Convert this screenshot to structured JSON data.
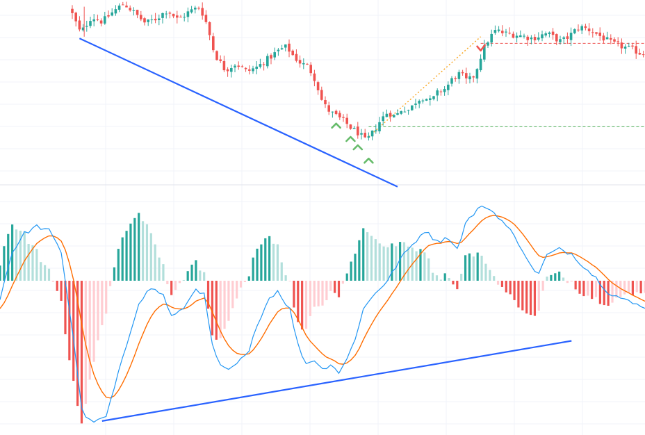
{
  "chart_data": [
    {
      "panel": "price",
      "type": "candlestick",
      "title": "",
      "xlabel": "",
      "ylabel": "",
      "grid": true,
      "ylim": [
        0,
        100
      ],
      "anchors": [
        [
          0,
          95
        ],
        [
          3,
          80
        ],
        [
          6,
          90
        ],
        [
          9,
          87
        ],
        [
          12,
          93
        ],
        [
          15,
          98
        ],
        [
          18,
          92
        ],
        [
          21,
          86
        ],
        [
          24,
          89
        ],
        [
          27,
          94
        ],
        [
          30,
          88
        ],
        [
          33,
          93
        ],
        [
          36,
          96
        ],
        [
          38,
          85
        ],
        [
          40,
          68
        ],
        [
          43,
          58
        ],
        [
          46,
          62
        ],
        [
          49,
          57
        ],
        [
          52,
          60
        ],
        [
          55,
          65
        ],
        [
          58,
          70
        ],
        [
          60,
          72
        ],
        [
          62,
          66
        ],
        [
          64,
          62
        ],
        [
          66,
          60
        ],
        [
          68,
          52
        ],
        [
          70,
          38
        ],
        [
          72,
          33
        ],
        [
          74,
          30
        ],
        [
          76,
          27
        ],
        [
          78,
          23
        ],
        [
          80,
          20
        ],
        [
          82,
          15
        ],
        [
          84,
          21
        ],
        [
          86,
          28
        ],
        [
          88,
          33
        ],
        [
          90,
          30
        ],
        [
          92,
          35
        ],
        [
          94,
          34
        ],
        [
          96,
          40
        ],
        [
          98,
          42
        ],
        [
          100,
          39
        ],
        [
          102,
          45
        ],
        [
          104,
          47
        ],
        [
          106,
          53
        ],
        [
          108,
          56
        ],
        [
          110,
          51
        ],
        [
          112,
          55
        ],
        [
          114,
          68
        ],
        [
          116,
          77
        ],
        [
          118,
          82
        ],
        [
          120,
          80
        ],
        [
          124,
          79
        ],
        [
          128,
          77
        ],
        [
          132,
          80
        ],
        [
          136,
          75
        ],
        [
          138,
          78
        ],
        [
          141,
          84
        ],
        [
          144,
          82
        ],
        [
          147,
          78
        ],
        [
          150,
          74
        ],
        [
          153,
          72
        ],
        [
          156,
          70
        ],
        [
          158,
          68
        ]
      ],
      "up_color": "#26a69a",
      "down_color": "#ef5350",
      "annotations": {
        "trendline_color": "#2962ff",
        "trendline_from_bar": 2,
        "trendline_from_value": 77,
        "trendline_to_bar": 90,
        "trendline_to_value": -12,
        "support_level": 24,
        "resistance_level": 74,
        "support_color": "#4caf50",
        "resistance_color": "#ef5350",
        "buy_signal_bars": [
          73,
          77,
          79,
          82
        ],
        "sell_signal_bars": [
          113
        ],
        "signal_buy_color": "#66bb6a",
        "signal_sell_color": "#ef5350",
        "projection_color": "#f9a825"
      }
    },
    {
      "panel": "macd",
      "type": "line+histogram",
      "title": "",
      "xlabel": "",
      "ylabel": "",
      "grid": true,
      "ylim": [
        -100,
        60
      ],
      "macd_anchors": [
        [
          0,
          -12
        ],
        [
          3,
          20
        ],
        [
          6,
          33
        ],
        [
          9,
          38
        ],
        [
          12,
          35
        ],
        [
          15,
          20
        ],
        [
          18,
          -40
        ],
        [
          20,
          -90
        ],
        [
          22,
          -98
        ],
        [
          24,
          -98
        ],
        [
          26,
          -95
        ],
        [
          28,
          -75
        ],
        [
          31,
          -45
        ],
        [
          34,
          -15
        ],
        [
          37,
          -5
        ],
        [
          40,
          -10
        ],
        [
          42,
          -25
        ],
        [
          44,
          -22
        ],
        [
          46,
          -15
        ],
        [
          48,
          -5
        ],
        [
          50,
          -10
        ],
        [
          52,
          -45
        ],
        [
          54,
          -60
        ],
        [
          56,
          -63
        ],
        [
          58,
          -58
        ],
        [
          61,
          -50
        ],
        [
          63,
          -30
        ],
        [
          66,
          -12
        ],
        [
          68,
          -7
        ],
        [
          71,
          -20
        ],
        [
          73,
          -45
        ],
        [
          75,
          -58
        ],
        [
          77,
          -55
        ],
        [
          79,
          -62
        ],
        [
          81,
          -58
        ],
        [
          83,
          -64
        ],
        [
          85,
          -55
        ],
        [
          87,
          -40
        ],
        [
          89,
          -20
        ],
        [
          92,
          -8
        ],
        [
          95,
          0
        ],
        [
          98,
          15
        ],
        [
          101,
          25
        ],
        [
          104,
          35
        ],
        [
          106,
          30
        ],
        [
          108,
          28
        ],
        [
          110,
          30
        ],
        [
          112,
          22
        ],
        [
          114,
          40
        ],
        [
          117,
          50
        ],
        [
          119,
          52
        ],
        [
          122,
          45
        ],
        [
          125,
          35
        ],
        [
          128,
          22
        ],
        [
          130,
          10
        ],
        [
          132,
          5
        ],
        [
          134,
          18
        ],
        [
          137,
          22
        ],
        [
          140,
          19
        ],
        [
          143,
          10
        ],
        [
          146,
          2
        ],
        [
          149,
          -8
        ],
        [
          152,
          -12
        ],
        [
          155,
          -16
        ],
        [
          158,
          -18
        ]
      ],
      "macd_color": "#2196f3",
      "signal_color": "#ff6d00",
      "hist_strong_up": "#26a69a",
      "hist_weak_up": "#b2dfdb",
      "hist_strong_down": "#ef5350",
      "hist_weak_down": "#ffcdd2",
      "trendline_color": "#2962ff",
      "trendline_from_bar": 25,
      "trendline_from_value": -98,
      "trendline_to_bar": 140,
      "trendline_to_value": -42
    }
  ]
}
